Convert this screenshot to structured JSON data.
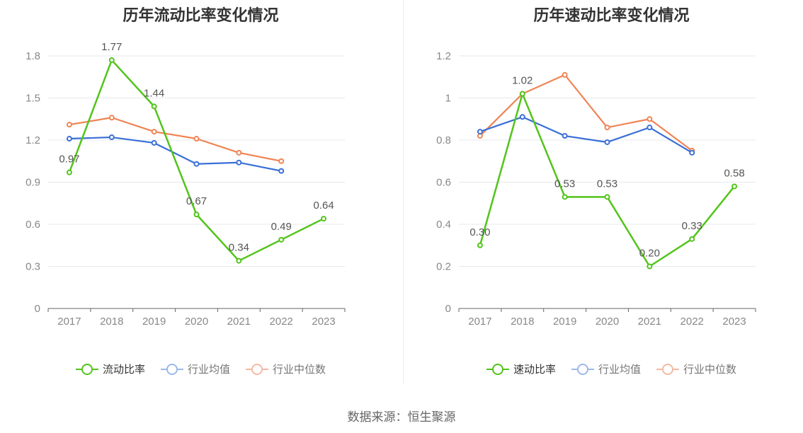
{
  "source_label": "数据来源：恒生聚源",
  "chart_data": [
    {
      "type": "line",
      "title": "历年流动比率变化情况",
      "categories": [
        "2017",
        "2018",
        "2019",
        "2020",
        "2021",
        "2022",
        "2023"
      ],
      "ylim": [
        0,
        1.8
      ],
      "yticks": [
        "0",
        "0.3",
        "0.6",
        "0.9",
        "1.2",
        "1.5",
        "1.8"
      ],
      "series": [
        {
          "name": "流动比率",
          "color": "#52c41a",
          "values": [
            0.97,
            1.77,
            1.44,
            0.67,
            0.34,
            0.49,
            0.64
          ],
          "labels": [
            "0.97",
            "1.77",
            "1.44",
            "0.67",
            "0.34",
            "0.49",
            "0.64"
          ]
        },
        {
          "name": "行业均值",
          "color": "#3a6fd8",
          "values": [
            1.21,
            1.22,
            1.18,
            1.03,
            1.04,
            0.98,
            null
          ]
        },
        {
          "name": "行业中位数",
          "color": "#ef8454",
          "values": [
            1.31,
            1.36,
            1.26,
            1.21,
            1.11,
            1.05,
            null
          ]
        }
      ],
      "legend": [
        {
          "name": "流动比率",
          "color": "#52c41a",
          "active": true
        },
        {
          "name": "行业均值",
          "color": "#9db8ec",
          "active": false
        },
        {
          "name": "行业中位数",
          "color": "#f6b9a3",
          "active": false
        }
      ]
    },
    {
      "type": "line",
      "title": "历年速动比率变化情况",
      "categories": [
        "2017",
        "2018",
        "2019",
        "2020",
        "2021",
        "2022",
        "2023"
      ],
      "ylim": [
        0,
        1.2
      ],
      "yticks": [
        "0",
        "0.2",
        "0.4",
        "0.6",
        "0.8",
        "1",
        "1.2"
      ],
      "series": [
        {
          "name": "速动比率",
          "color": "#52c41a",
          "values": [
            0.3,
            1.02,
            0.53,
            0.53,
            0.2,
            0.33,
            0.58
          ],
          "labels": [
            "0.30",
            "1.02",
            "0.53",
            "0.53",
            "0.20",
            "0.33",
            "0.58"
          ]
        },
        {
          "name": "行业均值",
          "color": "#3a6fd8",
          "values": [
            0.84,
            0.91,
            0.82,
            0.79,
            0.86,
            0.74,
            null
          ]
        },
        {
          "name": "行业中位数",
          "color": "#ef8454",
          "values": [
            0.82,
            1.02,
            1.11,
            0.86,
            0.9,
            0.75,
            null
          ]
        }
      ],
      "legend": [
        {
          "name": "速动比率",
          "color": "#52c41a",
          "active": true
        },
        {
          "name": "行业均值",
          "color": "#9db8ec",
          "active": false
        },
        {
          "name": "行业中位数",
          "color": "#f6b9a3",
          "active": false
        }
      ]
    }
  ]
}
